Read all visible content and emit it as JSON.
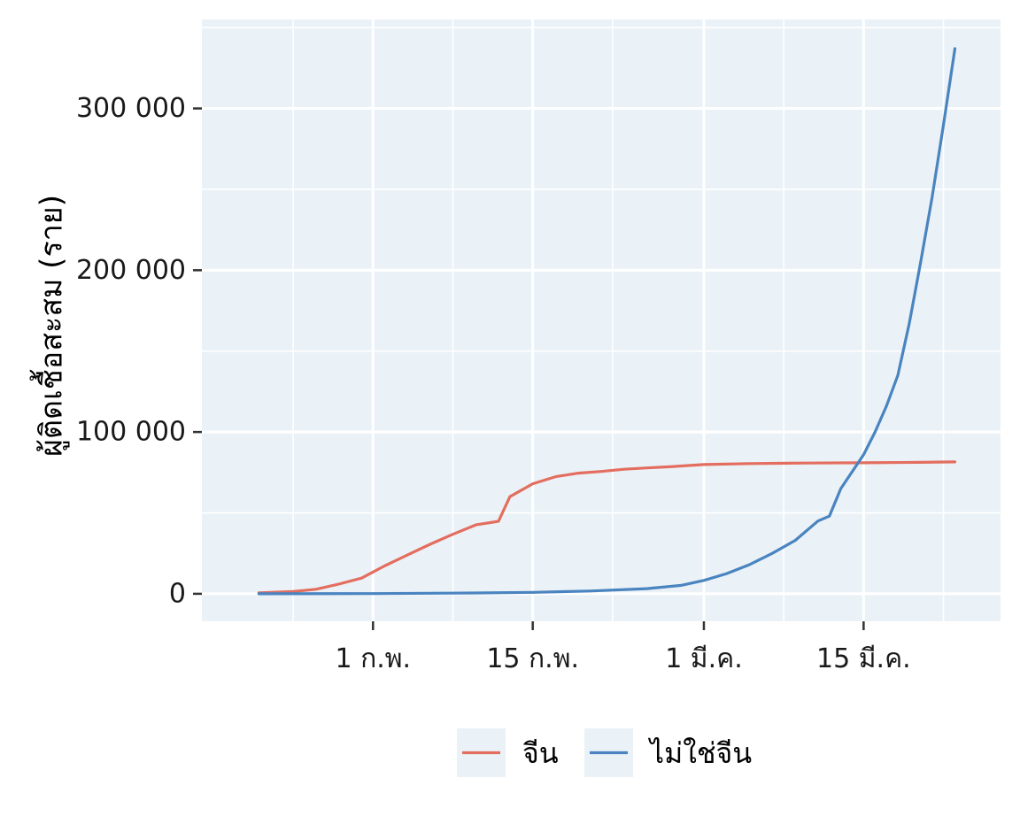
{
  "chart_data": {
    "type": "line",
    "title": "",
    "xlabel": "",
    "ylabel": "ผู้ติดเชื้อสะสม (ราย)",
    "x_start": "2020-01-22",
    "x_end": "2020-03-23",
    "xlim": [
      "2020-01-17",
      "2020-03-27"
    ],
    "ylim": [
      -17000,
      355000
    ],
    "x_ticks": [
      {
        "date": "2020-02-01",
        "label": "1 ก.พ."
      },
      {
        "date": "2020-02-15",
        "label": "15 ก.พ."
      },
      {
        "date": "2020-03-01",
        "label": "1 มี.ค."
      },
      {
        "date": "2020-03-15",
        "label": "15 มี.ค."
      }
    ],
    "y_ticks": [
      {
        "value": 0,
        "label": "0"
      },
      {
        "value": 100000,
        "label": "100 000"
      },
      {
        "value": 200000,
        "label": "200 000"
      },
      {
        "value": 300000,
        "label": "300 000"
      }
    ],
    "grid": true,
    "legend_position": "bottom",
    "series": [
      {
        "name": "จีน",
        "color": "#E36E5F",
        "points": [
          [
            "2020-01-22",
            548
          ],
          [
            "2020-01-25",
            1399
          ],
          [
            "2020-01-27",
            2800
          ],
          [
            "2020-01-29",
            5970
          ],
          [
            "2020-01-31",
            9700
          ],
          [
            "2020-02-02",
            17200
          ],
          [
            "2020-02-04",
            23900
          ],
          [
            "2020-02-06",
            30600
          ],
          [
            "2020-02-08",
            36800
          ],
          [
            "2020-02-10",
            42600
          ],
          [
            "2020-02-12",
            44800
          ],
          [
            "2020-02-13",
            60000
          ],
          [
            "2020-02-15",
            68000
          ],
          [
            "2020-02-17",
            72400
          ],
          [
            "2020-02-19",
            74600
          ],
          [
            "2020-02-21",
            75600
          ],
          [
            "2020-02-23",
            77000
          ],
          [
            "2020-02-25",
            77800
          ],
          [
            "2020-02-27",
            78500
          ],
          [
            "2020-03-01",
            79900
          ],
          [
            "2020-03-05",
            80500
          ],
          [
            "2020-03-10",
            80800
          ],
          [
            "2020-03-15",
            81000
          ],
          [
            "2020-03-20",
            81250
          ],
          [
            "2020-03-23",
            81500
          ]
        ]
      },
      {
        "name": "ไม่ใช่จีน",
        "color": "#4A84C0",
        "points": [
          [
            "2020-01-22",
            7
          ],
          [
            "2020-02-01",
            150
          ],
          [
            "2020-02-10",
            500
          ],
          [
            "2020-02-15",
            900
          ],
          [
            "2020-02-20",
            1700
          ],
          [
            "2020-02-25",
            3200
          ],
          [
            "2020-02-28",
            5200
          ],
          [
            "2020-03-01",
            8300
          ],
          [
            "2020-03-03",
            12500
          ],
          [
            "2020-03-05",
            18000
          ],
          [
            "2020-03-07",
            25000
          ],
          [
            "2020-03-09",
            33000
          ],
          [
            "2020-03-11",
            45000
          ],
          [
            "2020-03-12",
            48000
          ],
          [
            "2020-03-13",
            65000
          ],
          [
            "2020-03-15",
            86000
          ],
          [
            "2020-03-16",
            100000
          ],
          [
            "2020-03-17",
            116000
          ],
          [
            "2020-03-18",
            135000
          ],
          [
            "2020-03-19",
            167000
          ],
          [
            "2020-03-20",
            205000
          ],
          [
            "2020-03-21",
            245000
          ],
          [
            "2020-03-22",
            290000
          ],
          [
            "2020-03-23",
            337000
          ]
        ]
      }
    ]
  }
}
